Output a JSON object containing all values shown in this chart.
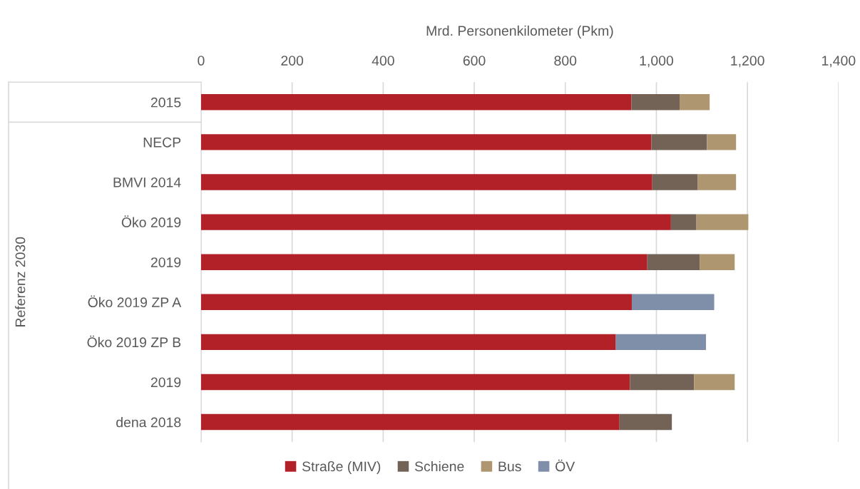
{
  "chart_data": {
    "type": "bar",
    "orientation": "horizontal",
    "stacked": true,
    "xlabel": "Mrd. Personenkilometer (Pkm)",
    "categories": [
      "2015",
      "NECP",
      "BMVI 2014",
      "Öko 2019",
      "2019",
      "Öko 2019 ZP A",
      "Öko 2019 ZP B",
      "2019",
      "dena 2018"
    ],
    "series": [
      {
        "name": "Straße (MIV)",
        "color": "#b22028",
        "values": [
          945,
          989,
          991,
          1032,
          980,
          946,
          911,
          942,
          919
        ]
      },
      {
        "name": "Schiene",
        "color": "#736357",
        "values": [
          106,
          122,
          100,
          56,
          115,
          null,
          null,
          141,
          115
        ]
      },
      {
        "name": "Bus",
        "color": "#ad9670",
        "values": [
          66,
          64,
          84,
          114,
          77,
          null,
          null,
          89,
          null
        ]
      },
      {
        "name": "ÖV",
        "color": "#7f8faa",
        "values": [
          null,
          null,
          null,
          null,
          null,
          181,
          198,
          null,
          null
        ]
      }
    ],
    "xlim": [
      0,
      1400
    ],
    "xticks": [
      0,
      200,
      400,
      600,
      800,
      {
        "value": 1000,
        "label": "1,000"
      },
      {
        "value": 1200,
        "label": "1,200"
      },
      {
        "value": 1400,
        "label": "1,400"
      }
    ],
    "grid": "x",
    "legend": "bottom",
    "annotations": [
      "Referenz 2030"
    ]
  }
}
